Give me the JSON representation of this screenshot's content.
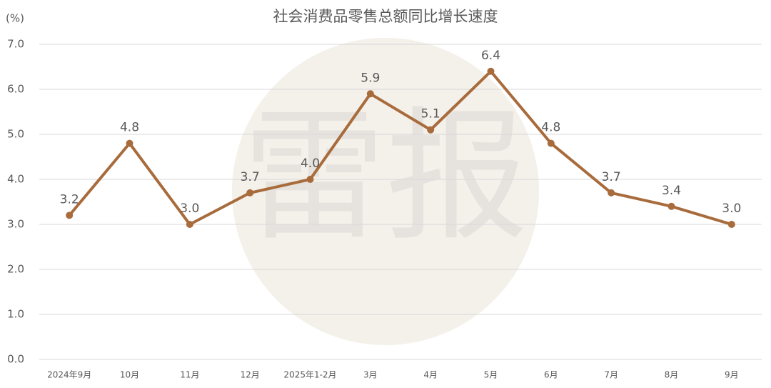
{
  "chart_data": {
    "type": "line",
    "title": "社会消费品零售总额同比增长速度",
    "y_unit": "(%)",
    "watermark": "雷报",
    "categories": [
      "2024年9月",
      "10月",
      "11月",
      "12月",
      "2025年1-2月",
      "3月",
      "4月",
      "5月",
      "6月",
      "7月",
      "8月",
      "9月"
    ],
    "series": [
      {
        "name": "社会消费品零售总额同比增长速度",
        "color": "#a86b3c",
        "values": [
          3.2,
          4.8,
          3.0,
          3.7,
          4.0,
          5.9,
          5.1,
          6.4,
          4.8,
          3.7,
          3.4,
          3.0
        ],
        "value_labels": [
          "3.2",
          "4.8",
          "3.0",
          "3.7",
          "4.0",
          "5.9",
          "5.1",
          "6.4",
          "4.8",
          "3.7",
          "3.4",
          "3.0"
        ]
      }
    ],
    "ylim": [
      0,
      7
    ],
    "yticks": [
      {
        "value": 0,
        "label": "0.0"
      },
      {
        "value": 1,
        "label": "1.0"
      },
      {
        "value": 2,
        "label": "2.0"
      },
      {
        "value": 3,
        "label": "3.0"
      },
      {
        "value": 4,
        "label": "4.0"
      },
      {
        "value": 5,
        "label": "5.0"
      },
      {
        "value": 6,
        "label": "6.0"
      },
      {
        "value": 7,
        "label": "7.0"
      }
    ],
    "grid": true
  }
}
